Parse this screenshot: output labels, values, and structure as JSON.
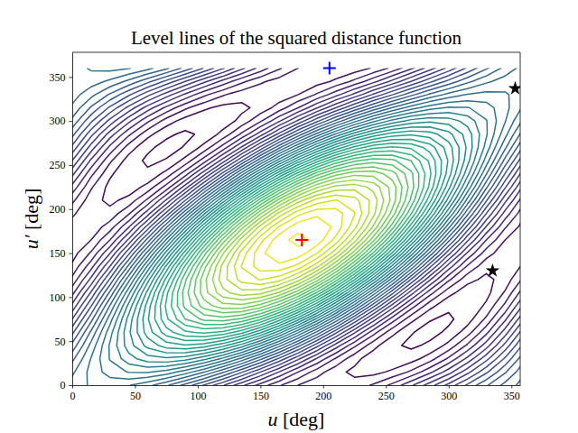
{
  "chart_data": {
    "type": "contour",
    "title": "Level lines of the squared distance function",
    "x_label": "u [deg]",
    "y_label": "u′ [deg]",
    "xlim": [
      0,
      357
    ],
    "ylim": [
      0,
      378
    ],
    "xticks": [
      0,
      50,
      100,
      150,
      200,
      250,
      300,
      350
    ],
    "yticks": [
      0,
      50,
      100,
      150,
      200,
      250,
      300,
      350
    ],
    "color": "viridis",
    "x": [
      0,
      15,
      30,
      45,
      60,
      75,
      90,
      105,
      120,
      135,
      150,
      165,
      180,
      195,
      210,
      225,
      240,
      255,
      270,
      285,
      300,
      315,
      330,
      345,
      360
    ],
    "y": [
      0,
      15,
      30,
      45,
      60,
      75,
      90,
      105,
      120,
      135,
      150,
      165,
      180,
      195,
      210,
      225,
      240,
      255,
      270,
      285,
      300,
      315,
      330,
      345,
      360
    ],
    "z": [
      [
        39.7,
        40.7,
        41.0,
        40.6,
        39.5,
        37.8,
        35.5,
        32.9,
        30.2,
        27.4,
        24.9,
        22.7,
        21.0,
        20.0,
        19.7,
        20.1,
        21.2,
        22.9,
        25.2,
        27.8,
        30.5,
        33.3,
        35.8,
        38.0,
        39.7
      ],
      [
        38.7,
        41.0,
        42.7,
        43.6,
        43.7,
        42.9,
        41.3,
        39.1,
        36.3,
        33.2,
        30.0,
        26.9,
        24.0,
        21.7,
        20.0,
        19.1,
        19.0,
        19.8,
        21.3,
        23.6,
        26.3,
        29.5,
        32.7,
        35.8,
        38.7
      ],
      [
        37.1,
        40.6,
        43.6,
        45.9,
        47.3,
        47.7,
        47.1,
        45.5,
        43.1,
        40.0,
        36.4,
        32.6,
        28.8,
        25.3,
        22.3,
        20.0,
        18.6,
        18.2,
        18.8,
        20.3,
        22.8,
        25.9,
        29.5,
        33.3,
        37.1
      ],
      [
        35.0,
        39.5,
        43.7,
        47.3,
        50.0,
        51.7,
        52.3,
        51.7,
        50.0,
        47.3,
        43.7,
        39.5,
        35.0,
        30.5,
        26.3,
        22.8,
        20.0,
        18.3,
        17.7,
        18.3,
        20.0,
        22.8,
        26.3,
        30.5,
        35.0
      ],
      [
        32.6,
        37.8,
        42.9,
        47.7,
        51.7,
        54.8,
        56.7,
        57.3,
        56.6,
        54.5,
        51.3,
        47.1,
        42.2,
        37.1,
        31.9,
        27.2,
        23.1,
        20.0,
        18.1,
        17.5,
        18.3,
        20.3,
        23.6,
        27.8,
        32.6
      ],
      [
        30.0,
        35.5,
        41.3,
        47.1,
        52.3,
        56.7,
        60.0,
        61.9,
        62.3,
        61.2,
        58.7,
        54.8,
        50.0,
        44.5,
        38.7,
        32.9,
        27.7,
        23.3,
        20.0,
        18.1,
        17.7,
        18.8,
        21.3,
        25.2,
        30.0
      ],
      [
        27.4,
        32.9,
        39.1,
        45.5,
        51.7,
        57.3,
        61.9,
        65.2,
        66.9,
        67.0,
        65.4,
        62.3,
        57.8,
        52.3,
        46.1,
        39.7,
        33.5,
        27.9,
        23.3,
        20.0,
        18.3,
        18.2,
        19.8,
        22.9,
        27.4
      ],
      [
        25.0,
        30.2,
        36.3,
        43.1,
        50.0,
        56.6,
        62.3,
        66.9,
        70.0,
        71.4,
        71.0,
        68.8,
        65.0,
        59.8,
        53.7,
        46.9,
        40.0,
        33.5,
        27.7,
        23.1,
        20.0,
        18.6,
        19.0,
        21.2,
        25.0
      ],
      [
        22.9,
        27.4,
        33.2,
        40.0,
        47.3,
        54.5,
        61.2,
        67.0,
        71.4,
        74.1,
        75.1,
        74.1,
        71.2,
        66.7,
        60.9,
        54.1,
        46.9,
        39.7,
        32.9,
        27.2,
        22.8,
        20.0,
        19.1,
        20.1,
        22.9
      ],
      [
        21.3,
        24.9,
        30.0,
        36.4,
        43.7,
        51.3,
        58.7,
        65.4,
        71.0,
        75.1,
        77.3,
        77.6,
        76.0,
        72.5,
        67.3,
        60.9,
        53.7,
        46.1,
        38.7,
        31.9,
        26.3,
        22.3,
        20.0,
        19.7,
        21.3
      ],
      [
        20.3,
        22.7,
        26.9,
        32.6,
        39.5,
        47.1,
        54.8,
        62.3,
        68.8,
        74.1,
        77.6,
        79.3,
        79.0,
        76.6,
        72.5,
        66.7,
        59.8,
        52.3,
        44.5,
        37.1,
        30.5,
        25.3,
        21.7,
        20.0,
        20.3
      ],
      [
        20.0,
        21.0,
        24.0,
        28.8,
        35.0,
        42.2,
        50.0,
        57.8,
        65.0,
        71.2,
        76.0,
        79.0,
        80.0,
        79.0,
        76.0,
        71.2,
        65.0,
        57.8,
        50.0,
        42.2,
        35.0,
        28.8,
        24.0,
        21.0,
        20.0
      ],
      [
        20.3,
        20.0,
        21.7,
        25.3,
        30.5,
        37.1,
        44.5,
        52.3,
        59.8,
        66.7,
        72.5,
        76.6,
        79.0,
        79.3,
        77.6,
        74.1,
        68.8,
        62.3,
        54.8,
        47.1,
        39.5,
        32.6,
        26.9,
        22.7,
        20.3
      ],
      [
        21.3,
        19.7,
        20.0,
        22.3,
        26.3,
        31.9,
        38.7,
        46.1,
        53.7,
        60.9,
        67.3,
        72.5,
        76.0,
        77.6,
        77.3,
        75.1,
        71.0,
        65.4,
        58.7,
        51.3,
        43.7,
        36.4,
        30.0,
        24.9,
        21.3
      ],
      [
        22.9,
        20.1,
        19.1,
        20.0,
        22.8,
        27.2,
        32.9,
        39.7,
        46.9,
        54.1,
        60.9,
        66.7,
        71.2,
        74.1,
        75.1,
        74.1,
        71.4,
        67.0,
        61.2,
        54.5,
        47.3,
        40.0,
        33.2,
        27.4,
        22.9
      ],
      [
        25.0,
        21.2,
        19.0,
        18.6,
        20.0,
        23.1,
        27.7,
        33.5,
        40.0,
        46.9,
        53.7,
        59.8,
        65.0,
        68.8,
        71.0,
        71.4,
        70.0,
        66.9,
        62.3,
        56.6,
        50.0,
        43.1,
        36.3,
        30.2,
        25.0
      ],
      [
        27.4,
        22.9,
        19.8,
        18.2,
        18.3,
        20.0,
        23.3,
        27.9,
        33.5,
        39.7,
        46.1,
        52.3,
        57.8,
        62.3,
        65.4,
        67.0,
        66.9,
        65.2,
        61.9,
        57.3,
        51.7,
        45.5,
        39.1,
        32.9,
        27.4
      ],
      [
        30.0,
        25.2,
        21.3,
        18.8,
        17.7,
        18.1,
        20.0,
        23.3,
        27.7,
        32.9,
        38.7,
        44.5,
        50.0,
        54.8,
        58.7,
        61.2,
        62.3,
        61.9,
        60.0,
        56.7,
        52.3,
        47.1,
        41.3,
        35.5,
        30.0
      ],
      [
        32.6,
        27.8,
        23.6,
        20.3,
        18.3,
        17.5,
        18.1,
        20.0,
        23.1,
        27.2,
        31.9,
        37.1,
        42.2,
        47.1,
        51.3,
        54.5,
        56.6,
        57.3,
        56.7,
        54.8,
        51.7,
        47.7,
        42.9,
        37.8,
        32.6
      ],
      [
        35.0,
        30.5,
        26.3,
        22.8,
        20.0,
        18.3,
        17.7,
        18.3,
        20.0,
        22.8,
        26.3,
        30.5,
        35.0,
        39.5,
        43.7,
        47.3,
        50.0,
        51.7,
        52.3,
        51.7,
        50.0,
        47.3,
        43.7,
        39.5,
        35.0
      ],
      [
        37.1,
        33.3,
        29.5,
        25.9,
        22.8,
        20.3,
        18.8,
        18.2,
        18.6,
        20.0,
        22.3,
        25.3,
        28.8,
        32.6,
        36.4,
        40.0,
        43.1,
        45.5,
        47.1,
        47.7,
        47.3,
        45.9,
        43.6,
        40.6,
        37.1
      ],
      [
        38.7,
        35.8,
        32.7,
        29.5,
        26.3,
        23.6,
        21.3,
        19.8,
        19.0,
        19.1,
        20.0,
        21.7,
        24.0,
        26.9,
        30.0,
        33.2,
        36.3,
        39.1,
        41.3,
        42.9,
        43.7,
        43.6,
        42.7,
        41.0,
        38.7
      ],
      [
        39.7,
        38.0,
        35.8,
        33.3,
        30.5,
        27.8,
        25.2,
        22.9,
        21.2,
        20.1,
        19.7,
        20.0,
        21.0,
        22.7,
        24.9,
        27.4,
        30.2,
        32.9,
        35.5,
        37.8,
        39.5,
        40.6,
        41.0,
        40.7,
        39.7
      ],
      [
        40.0,
        39.7,
        38.7,
        37.1,
        35.0,
        32.6,
        30.0,
        27.4,
        25.0,
        22.9,
        21.3,
        20.3,
        20.0,
        20.3,
        21.3,
        22.9,
        25.0,
        27.4,
        30.0,
        32.6,
        35.0,
        37.1,
        38.7,
        39.7,
        40.0
      ],
      [
        39.7,
        40.7,
        41.0,
        40.6,
        39.5,
        37.8,
        35.5,
        32.9,
        30.2,
        27.4,
        24.9,
        22.7,
        21.0,
        20.0,
        19.7,
        20.1,
        21.2,
        22.9,
        25.2,
        27.8,
        30.5,
        33.3,
        35.8,
        38.0,
        39.7
      ]
    ],
    "levels": [
      18,
      19.5,
      21,
      22.5,
      24,
      25.5,
      27,
      28.5,
      30,
      31.5,
      33,
      34.5,
      36,
      37.5,
      39,
      40.5,
      42,
      43.5,
      45,
      46.5,
      48,
      49.5,
      51,
      52.5,
      54,
      55.5,
      57,
      58.5,
      60,
      61.5,
      63,
      64.5,
      66,
      67.5,
      69,
      70.5,
      72,
      73.5,
      75,
      76.5,
      78,
      79.5
    ],
    "points": [
      {
        "x": 183,
        "y": 165,
        "color": "#ff0000",
        "marker": "plus"
      },
      {
        "x": 205,
        "y": 360,
        "color": "#0000ff",
        "marker": "plus"
      },
      {
        "x": 335,
        "y": 130,
        "color": "#000000",
        "marker": "star"
      },
      {
        "x": 353,
        "y": 337,
        "color": "#000000",
        "marker": "star"
      }
    ]
  }
}
